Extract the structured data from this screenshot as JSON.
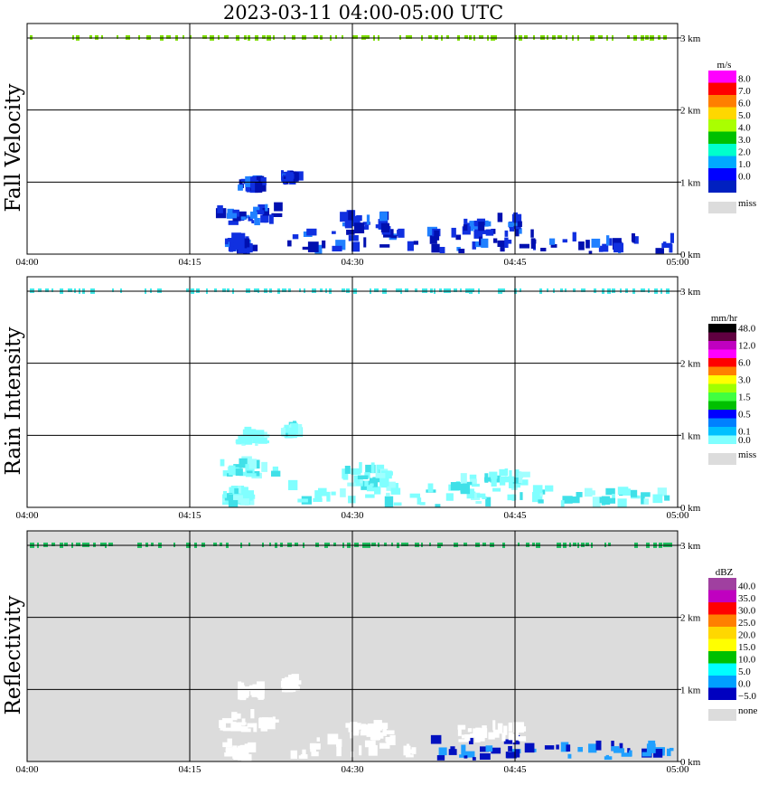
{
  "chart_data": {
    "type": "heatmap",
    "title": "2023-03-11   04:00-05:00 UTC",
    "x_ticks": [
      "04:00",
      "04:15",
      "04:30",
      "04:45",
      "05:00"
    ],
    "y_ticks": [
      "0 km",
      "1 km",
      "2 km",
      "3 km"
    ],
    "ylim_km": [
      0,
      3.2
    ],
    "xlim": [
      "04:00",
      "05:00"
    ],
    "grid": true,
    "legend_position": "right",
    "panels": [
      {
        "ylabel": "Fall Velocity",
        "unit": "m/s",
        "background": "#ffffff",
        "legend": [
          {
            "label": "8.0",
            "color": "#ff00ff"
          },
          {
            "label": "7.0",
            "color": "#ff0000"
          },
          {
            "label": "6.0",
            "color": "#ff7f00"
          },
          {
            "label": "5.0",
            "color": "#ffd700"
          },
          {
            "label": "4.0",
            "color": "#aaff00"
          },
          {
            "label": "3.0",
            "color": "#00c000"
          },
          {
            "label": "2.0",
            "color": "#00ffcc"
          },
          {
            "label": "1.0",
            "color": "#00aaff"
          },
          {
            "label": "0.0",
            "color": "#0000ff"
          },
          {
            "label": "",
            "color": "#0020c0"
          }
        ],
        "miss_label": "miss",
        "miss_color": "#dcdcdc",
        "band_color": "#7fe000",
        "echo_color": "#1030e0",
        "echo_dark": "#0010b0",
        "echo_light": "#2080ff"
      },
      {
        "ylabel": "Rain Intensity",
        "unit": "mm/hr",
        "background": "#ffffff",
        "legend": [
          {
            "label": "48.0",
            "color": "#000000"
          },
          {
            "label": "",
            "color": "#600040"
          },
          {
            "label": "12.0",
            "color": "#c000c0"
          },
          {
            "label": "",
            "color": "#ff00ff"
          },
          {
            "label": "6.0",
            "color": "#ff0000"
          },
          {
            "label": "",
            "color": "#ff8000"
          },
          {
            "label": "3.0",
            "color": "#ffff00"
          },
          {
            "label": "",
            "color": "#a0ff00"
          },
          {
            "label": "1.5",
            "color": "#40ff40"
          },
          {
            "label": "",
            "color": "#00c000"
          },
          {
            "label": "0.5",
            "color": "#0000ff"
          },
          {
            "label": "",
            "color": "#0080ff"
          },
          {
            "label": "0.1",
            "color": "#00c0ff"
          },
          {
            "label": "0.0",
            "color": "#80ffff"
          }
        ],
        "miss_label": "miss",
        "miss_color": "#dcdcdc",
        "band_color": "#40e8e8",
        "echo_color": "#80ffff",
        "echo_dark": "#40e0e8",
        "echo_light": "#a0ffff"
      },
      {
        "ylabel": "Reflectivity",
        "unit": "dBZ",
        "background": "#dcdcdc",
        "legend": [
          {
            "label": "40.0",
            "color": "#a040a0"
          },
          {
            "label": "35.0",
            "color": "#c000c0"
          },
          {
            "label": "30.0",
            "color": "#ff0000"
          },
          {
            "label": "25.0",
            "color": "#ff7f00"
          },
          {
            "label": "20.0",
            "color": "#ffd700"
          },
          {
            "label": "15.0",
            "color": "#ffff00"
          },
          {
            "label": "10.0",
            "color": "#00c000"
          },
          {
            "label": "5.0",
            "color": "#00ffff"
          },
          {
            "label": "0.0",
            "color": "#00a0ff"
          },
          {
            "label": "−5.0",
            "color": "#0000c0"
          }
        ],
        "miss_label": "none",
        "miss_color": "#dcdcdc",
        "band_color": "#20c060",
        "echo_color": "#ffffff",
        "echo_dark": "#0010c0",
        "echo_light": "#20a0ff"
      }
    ]
  }
}
